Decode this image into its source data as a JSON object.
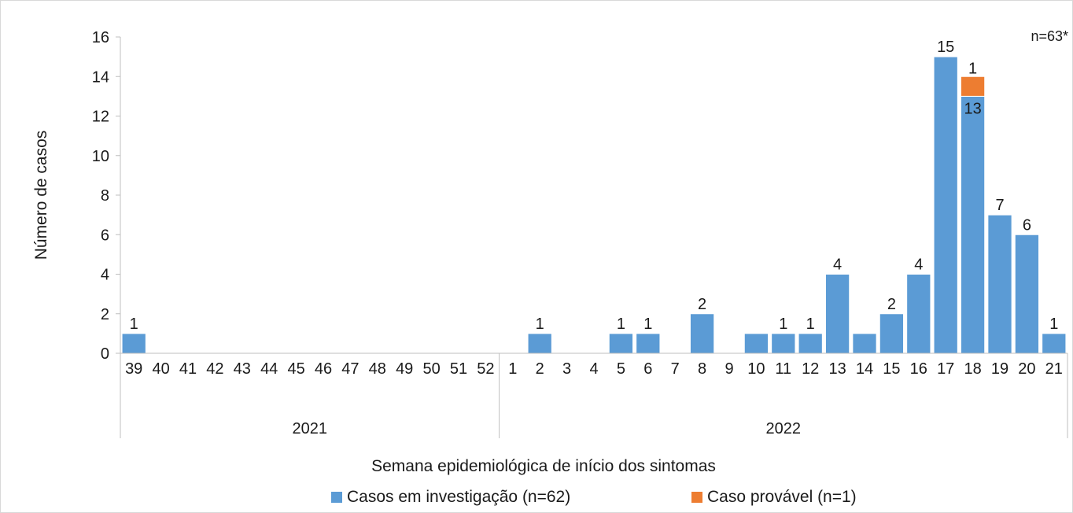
{
  "chart_data": {
    "type": "bar",
    "stacked": true,
    "ylabel": "Número de casos",
    "xlabel": "Semana epidemiológica de início dos sintomas",
    "ylim": [
      0,
      16
    ],
    "yticks": [
      0,
      2,
      4,
      6,
      8,
      10,
      12,
      14,
      16
    ],
    "annotation": "n=63*",
    "groups": [
      {
        "label": "2021",
        "count": 14
      },
      {
        "label": "2022",
        "count": 21
      }
    ],
    "categories": [
      "39",
      "40",
      "41",
      "42",
      "43",
      "44",
      "45",
      "46",
      "47",
      "48",
      "49",
      "50",
      "51",
      "52",
      "1",
      "2",
      "3",
      "4",
      "5",
      "6",
      "7",
      "8",
      "9",
      "10",
      "11",
      "12",
      "13",
      "14",
      "15",
      "16",
      "17",
      "18",
      "19",
      "20",
      "21"
    ],
    "series": [
      {
        "name": "Casos em investigação (n=62)",
        "color": "#5b9bd5",
        "values": [
          1,
          0,
          0,
          0,
          0,
          0,
          0,
          0,
          0,
          0,
          0,
          0,
          0,
          0,
          0,
          1,
          0,
          0,
          1,
          1,
          0,
          2,
          0,
          1,
          1,
          1,
          4,
          1,
          2,
          4,
          15,
          13,
          7,
          6,
          1
        ],
        "labels": [
          "1",
          "",
          "",
          "",
          "",
          "",
          "",
          "",
          "",
          "",
          "",
          "",
          "",
          "",
          "",
          "1",
          "",
          "",
          "1",
          "1",
          "",
          "2",
          "",
          "",
          "1",
          "1",
          "4",
          "",
          "2",
          "4",
          "15",
          "13",
          "7",
          "6",
          "1"
        ]
      },
      {
        "name": "Caso provável (n=1)",
        "color": "#ed7d31",
        "values": [
          0,
          0,
          0,
          0,
          0,
          0,
          0,
          0,
          0,
          0,
          0,
          0,
          0,
          0,
          0,
          0,
          0,
          0,
          0,
          0,
          0,
          0,
          0,
          0,
          0,
          0,
          0,
          0,
          0,
          0,
          0,
          1,
          0,
          0,
          0
        ],
        "labels": [
          "",
          "",
          "",
          "",
          "",
          "",
          "",
          "",
          "",
          "",
          "",
          "",
          "",
          "",
          "",
          "",
          "",
          "",
          "",
          "",
          "",
          "",
          "",
          "",
          "",
          "",
          "",
          "",
          "",
          "",
          "",
          "1",
          "",
          "",
          ""
        ]
      }
    ],
    "grid": false,
    "legend_position": "bottom"
  }
}
